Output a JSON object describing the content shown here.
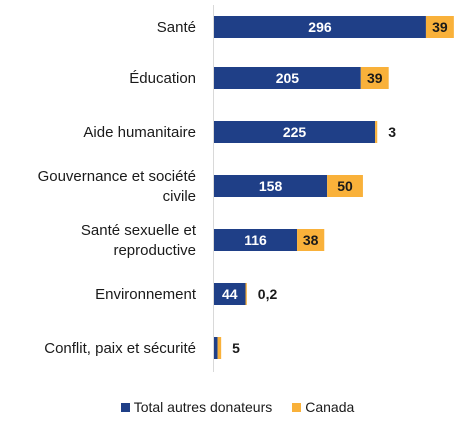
{
  "chart_data": {
    "type": "bar",
    "orientation": "horizontal",
    "stacked": true,
    "categories": [
      [
        "Santé"
      ],
      [
        "Éducation"
      ],
      [
        "Aide humanitaire"
      ],
      [
        "Gouvernance et société",
        "civile"
      ],
      [
        "Santé sexuelle et",
        "reproductive"
      ],
      [
        "Environnement"
      ],
      [
        "Conflit, paix et sécurité"
      ]
    ],
    "series": [
      {
        "name": "Total autres donateurs",
        "color": "#1f3f87",
        "values": [
          296,
          205,
          225,
          158,
          116,
          44,
          5
        ]
      },
      {
        "name": "Canada",
        "color": "#f9b13a",
        "values": [
          39,
          39,
          3,
          50,
          38,
          0.2,
          5
        ]
      }
    ],
    "labels": [
      [
        "296",
        "39"
      ],
      [
        "205",
        "39"
      ],
      [
        "225",
        "3"
      ],
      [
        "158",
        "50"
      ],
      [
        "116",
        "38"
      ],
      [
        "44",
        "0,2"
      ],
      [
        "",
        "5"
      ]
    ],
    "xlim": [
      0,
      335
    ],
    "legend_position": "bottom",
    "grid": false
  }
}
